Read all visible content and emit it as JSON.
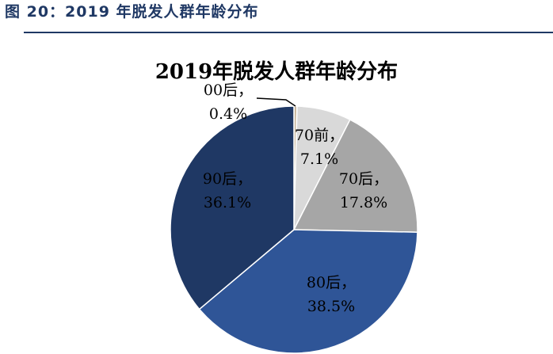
{
  "figure_caption": "图 20：2019 年脱发人群年龄分布",
  "chart_data": {
    "type": "pie",
    "title": "2019年脱发人群年龄分布",
    "slices": [
      {
        "category": "00后",
        "value": 0.4,
        "label": "0.4%",
        "color": "#C9B79C"
      },
      {
        "category": "70前",
        "value": 7.1,
        "label": "7.1%",
        "color": "#D9D9D9"
      },
      {
        "category": "70后",
        "value": 17.8,
        "label": "17.8%",
        "color": "#A6A6A6"
      },
      {
        "category": "80后",
        "value": 38.5,
        "label": "38.5%",
        "color": "#2F5597"
      },
      {
        "category": "90后",
        "value": 36.1,
        "label": "36.1%",
        "color": "#1F3864"
      }
    ],
    "start_angle_deg": 0,
    "direction": "clockwise"
  }
}
